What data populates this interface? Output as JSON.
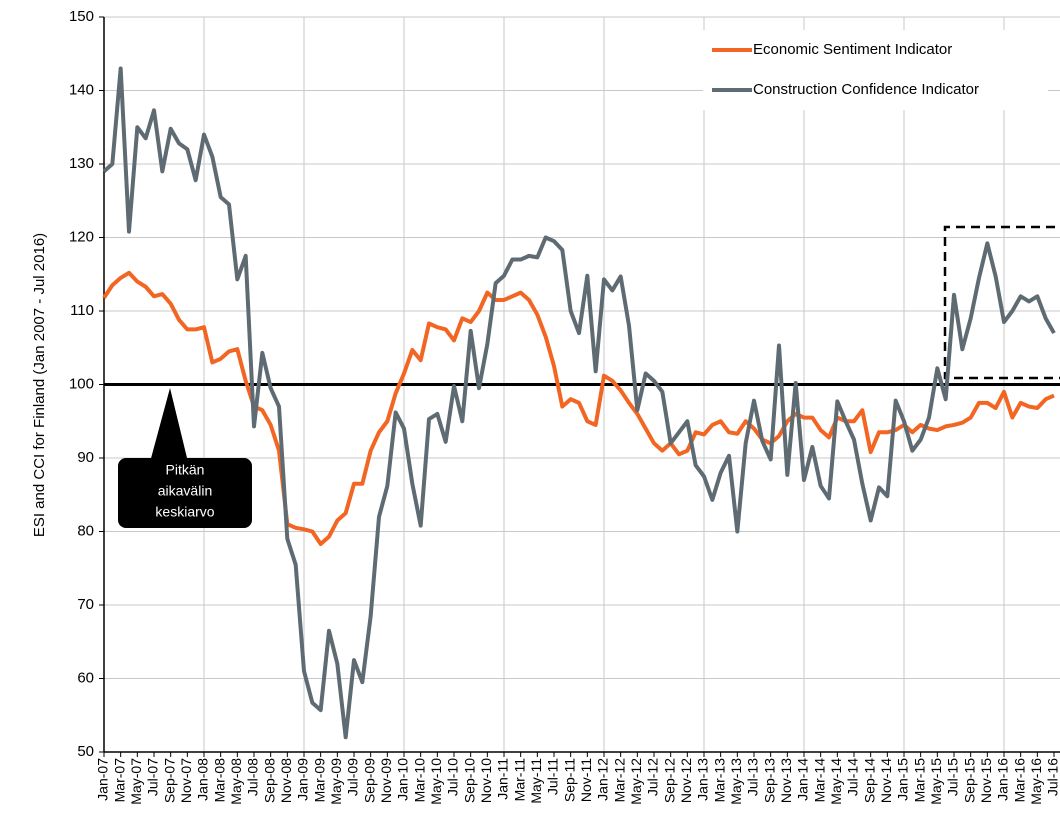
{
  "chart_data": {
    "type": "line",
    "ylabel": "ESI and CCI for Finland (Jan 2007 - Jul 2016)",
    "categories": [
      "Jan-07",
      null,
      "Mar-07",
      null,
      "May-07",
      null,
      "Jul-07",
      null,
      "Sep-07",
      null,
      "Nov-07",
      null,
      "Jan-08",
      null,
      "Mar-08",
      null,
      "May-08",
      null,
      "Jul-08",
      null,
      "Sep-08",
      null,
      "Nov-08",
      null,
      "Jan-09",
      null,
      "Mar-09",
      null,
      "May-09",
      null,
      "Jul-09",
      null,
      "Sep-09",
      null,
      "Nov-09",
      null,
      "Jan-10",
      null,
      "Mar-10",
      null,
      "May-10",
      null,
      "Jul-10",
      null,
      "Sep-10",
      null,
      "Nov-10",
      null,
      "Jan-11",
      null,
      "Mar-11",
      null,
      "May-11",
      null,
      "Jul-11",
      null,
      "Sep-11",
      null,
      "Nov-11",
      null,
      "Jan-12",
      null,
      "Mar-12",
      null,
      "May-12",
      null,
      "Jul-12",
      null,
      "Sep-12",
      null,
      "Nov-12",
      null,
      "Jan-13",
      null,
      "Mar-13",
      null,
      "May-13",
      null,
      "Jul-13",
      null,
      "Sep-13",
      null,
      "Nov-13",
      null,
      "Jan-14",
      null,
      "Mar-14",
      null,
      "May-14",
      null,
      "Jul-14",
      null,
      "Sep-14",
      null,
      "Nov-14",
      null,
      "Jan-15",
      null,
      "Mar-15",
      null,
      "May-15",
      null,
      "Jul-15",
      null,
      "Sep-15",
      null,
      "Nov-15",
      null,
      "Jan-16",
      null,
      "Mar-16",
      null,
      "May-16",
      null,
      "Jul-16"
    ],
    "series": [
      {
        "name": "Economic Sentiment Indicator",
        "color": "#f26522",
        "values": [
          111.8,
          113.5,
          114.5,
          115.2,
          114,
          113.3,
          112,
          112.3,
          111,
          108.8,
          107.5,
          107.5,
          107.8,
          103,
          103.5,
          104.5,
          104.8,
          100.5,
          97,
          96.5,
          94.5,
          91,
          81,
          80.5,
          80.3,
          80,
          78.3,
          79.3,
          81.5,
          82.5,
          86.5,
          86.5,
          91,
          93.5,
          95,
          98.8,
          101.5,
          104.7,
          103.3,
          108.3,
          107.8,
          107.5,
          106,
          109,
          108.5,
          110,
          112.5,
          111.5,
          111.5,
          112,
          112.5,
          111.5,
          109.5,
          106.5,
          102.5,
          97,
          98,
          97.5,
          95,
          94.5,
          101.2,
          100.5,
          99.2,
          97.5,
          96,
          94,
          92,
          91,
          92,
          90.5,
          91,
          93.5,
          93.2,
          94.5,
          95,
          93.5,
          93.3,
          95,
          94,
          92.5,
          92,
          93,
          95,
          96,
          95.5,
          95.5,
          93.8,
          92.8,
          95.5,
          95,
          95,
          96.5,
          90.8,
          93.5,
          93.5,
          93.8,
          94.5,
          93.5,
          94.5,
          94,
          93.8,
          94.3,
          94.5,
          94.8,
          95.5,
          97.5,
          97.5,
          96.8,
          99,
          95.5,
          97.5,
          97,
          96.8,
          98,
          98.5
        ]
      },
      {
        "name": "Construction Confidence Indicator",
        "color": "#5f6b73",
        "values": [
          129,
          130,
          143,
          120.8,
          135,
          133.5,
          137.3,
          129,
          134.8,
          132.8,
          132,
          127.8,
          134,
          131,
          125.5,
          124.5,
          114.3,
          117.5,
          94.3,
          104.3,
          99.5,
          97,
          79,
          75.5,
          61,
          56.7,
          55.7,
          66.5,
          62,
          52,
          62.5,
          59.5,
          68.5,
          82,
          86.2,
          96.2,
          94,
          86.5,
          80.8,
          95.3,
          96,
          92.2,
          99.8,
          95,
          107.3,
          99.5,
          105.5,
          113.8,
          114.8,
          117,
          117,
          117.5,
          117.3,
          120,
          119.5,
          118.3,
          110,
          107,
          114.8,
          101.8,
          114.3,
          112.8,
          114.7,
          108,
          96.5,
          101.5,
          100.5,
          99,
          92,
          93.5,
          95,
          89,
          87.5,
          84.3,
          88,
          90.3,
          80,
          92,
          97.8,
          92.3,
          89.8,
          105.3,
          87.7,
          100.2,
          87,
          91.5,
          86.2,
          84.5,
          97.7,
          95,
          92.5,
          86.5,
          81.5,
          86,
          84.8,
          97.8,
          95,
          91,
          92.5,
          95.5,
          102.2,
          98,
          112.2,
          104.8,
          109,
          114.5,
          119.2,
          114.7,
          108.5,
          110,
          112,
          111.3,
          112,
          109,
          107
        ]
      }
    ],
    "ylim": [
      50,
      150
    ],
    "yticks": [
      50,
      60,
      70,
      80,
      90,
      100,
      110,
      120,
      130,
      140,
      150
    ],
    "grid": true,
    "legend": "upper right",
    "reference_line": 100,
    "annotation": [
      "Pitkän",
      "aikavälin",
      "keskiarvo"
    ]
  }
}
